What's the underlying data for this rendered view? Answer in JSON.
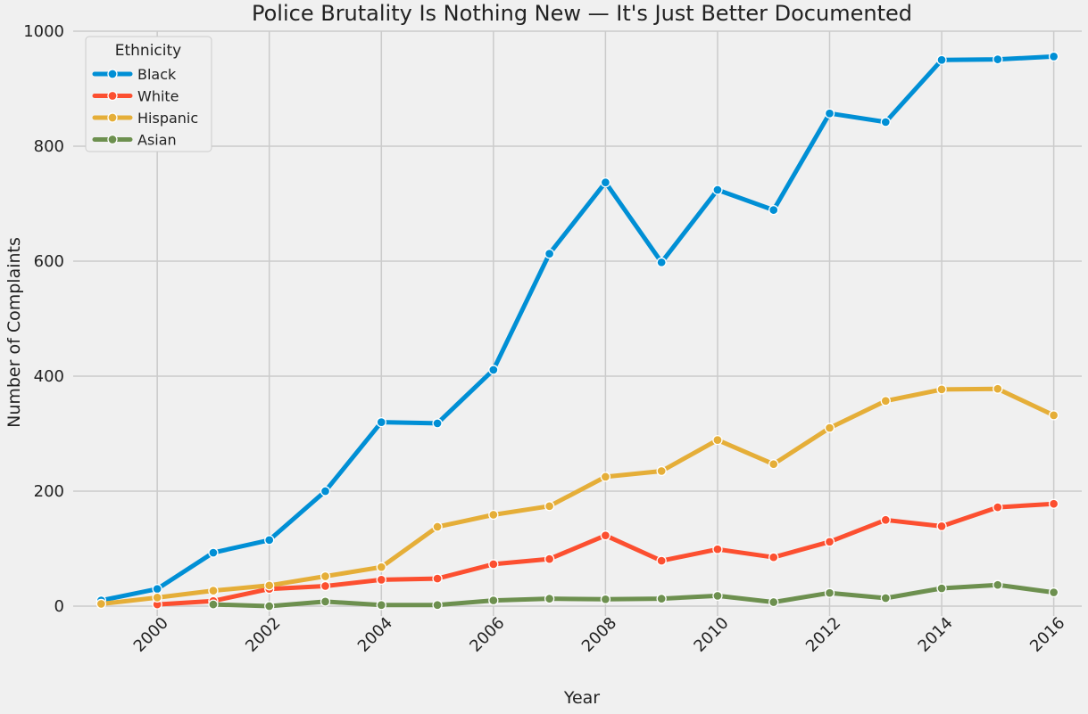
{
  "colors": {
    "background": "#f0f0f0",
    "grid": "#cbcbcb"
  },
  "chart_data": {
    "type": "line",
    "title": "Police Brutality Is Nothing New — It's Just Better Documented",
    "xlabel": "Year",
    "ylabel": "Number of Complaints",
    "xlim": [
      1998.5,
      2016.5
    ],
    "ylim": [
      -17,
      1000
    ],
    "x_ticks": [
      2000,
      2002,
      2004,
      2006,
      2008,
      2010,
      2012,
      2014,
      2016
    ],
    "y_ticks": [
      0,
      200,
      400,
      600,
      800,
      1000
    ],
    "grid": true,
    "legend": {
      "title": "Ethnicity",
      "placement": "top-left"
    },
    "series": [
      {
        "name": "Black",
        "color": "#008fd5",
        "x": [
          1999,
          2000,
          2001,
          2002,
          2003,
          2004,
          2005,
          2006,
          2007,
          2008,
          2009,
          2010,
          2011,
          2012,
          2013,
          2014,
          2015,
          2016
        ],
        "values": [
          10,
          30,
          93,
          115,
          200,
          320,
          318,
          411,
          613,
          737,
          598,
          724,
          689,
          857,
          842,
          950,
          951,
          956
        ]
      },
      {
        "name": "White",
        "color": "#fc4f30",
        "x": [
          2000,
          2001,
          2002,
          2003,
          2004,
          2005,
          2006,
          2007,
          2008,
          2009,
          2010,
          2011,
          2012,
          2013,
          2014,
          2015,
          2016
        ],
        "values": [
          3,
          9,
          30,
          35,
          46,
          48,
          73,
          82,
          123,
          79,
          99,
          85,
          112,
          150,
          139,
          172,
          178
        ]
      },
      {
        "name": "Hispanic",
        "color": "#e5ae38",
        "x": [
          1999,
          2000,
          2001,
          2002,
          2003,
          2004,
          2005,
          2006,
          2007,
          2008,
          2009,
          2010,
          2011,
          2012,
          2013,
          2014,
          2015,
          2016
        ],
        "values": [
          4,
          15,
          27,
          36,
          52,
          68,
          138,
          159,
          174,
          225,
          235,
          289,
          247,
          310,
          357,
          377,
          378,
          332
        ]
      },
      {
        "name": "Asian",
        "color": "#6d904f",
        "x": [
          2001,
          2002,
          2003,
          2004,
          2005,
          2006,
          2007,
          2008,
          2009,
          2010,
          2011,
          2012,
          2013,
          2014,
          2015,
          2016
        ],
        "values": [
          3,
          0,
          8,
          2,
          2,
          10,
          13,
          12,
          13,
          18,
          7,
          23,
          14,
          31,
          37,
          24
        ]
      }
    ]
  }
}
